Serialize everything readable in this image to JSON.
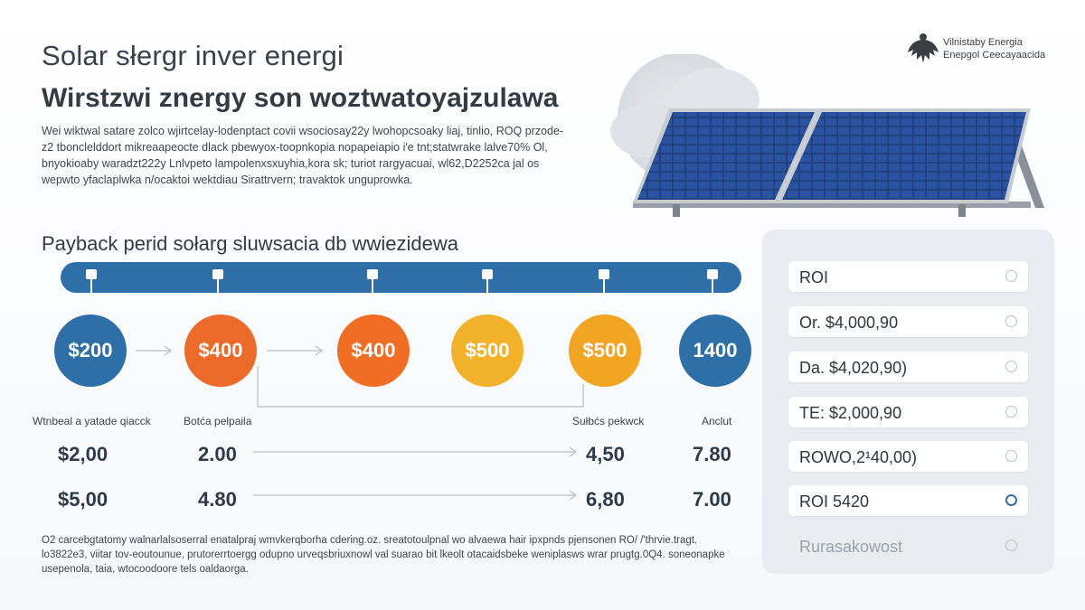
{
  "header": {
    "title": "Solar słergr inver energi",
    "subtitle": "Wirstzwi znergy son woztwatoyajzulawa",
    "intro": "Wei wiktwal satare zolco wjirtcelay-lodenptact covii wsociosay22y lwohopcsoaky liaj, tinlio, ROQ przode- z2 tbonclelddort mikreaapeocte dlack pbewyox-toopnkopia nopapeiapio i'e tnt;statwrake lalve70% Ol, bnyokioaby waradzt222y Lnlvpeto lampolenxsxuyhia,kora sk; turiot rargyacuai, wl62,D2252ca jal os wepwto yfaclaplwka n/ocaktoi wektdiau Sirattrvern; travaktok unguprowka.",
    "logo_text_1": "Vilnistaby Energia",
    "logo_text_2": "Enepgol Ceecayaacida"
  },
  "timeline": {
    "title": "Payback perid sołarg sluwsacia db wwiezidewa",
    "circles": [
      {
        "label": "$200",
        "color": "#2f6fa8"
      },
      {
        "label": "$400",
        "color": "#ec6b2a"
      },
      {
        "label": "$400",
        "color": "#ef6e23"
      },
      {
        "label": "$500",
        "color": "#f3b22c"
      },
      {
        "label": "$500",
        "color": "#f2a523"
      },
      {
        "label": "1400",
        "color": "#2f6fa8"
      }
    ],
    "labels": [
      "Wtnbeal a yatade qiacck",
      "Botća pelpaila",
      "Sułbćs pekwck",
      "Anclut"
    ],
    "rows": [
      [
        "$2,00",
        "2.00",
        "4,50",
        "7.80"
      ],
      [
        "$5,00",
        "4.80",
        "6,80",
        "7.00"
      ]
    ]
  },
  "footer": "O2 carcebgtatomy walnarlalsoserral enatalpraj wmvkerqborha cdering.oz. sreatotoulpnal wo alvaewa hair ipxpnds pjensonen RO/ /'thrvie.tragt. lo3822e3, viitar tov-eoutounue, prutorerrtoergg odupno urveqsbriuxnowl val suarao bit lkeolt otacaidsbeke weniplasws wrar prugtg.0Q4. soneonapke usepenola, taia, wtocoodoore tels oaldaorga.",
  "roi": {
    "options": [
      {
        "label": "ROI",
        "selected": false,
        "muted": false
      },
      {
        "label": "Or. $4,000,90",
        "selected": false,
        "muted": false
      },
      {
        "label": "Da. $4,020,90)",
        "selected": false,
        "muted": false
      },
      {
        "label": "TE: $2,000,90",
        "selected": false,
        "muted": false
      },
      {
        "label": "ROWO,2¹40,00)",
        "selected": false,
        "muted": false
      },
      {
        "label": "ROI 5420",
        "selected": true,
        "muted": false
      },
      {
        "label": "Rurasakowost",
        "selected": false,
        "muted": true
      }
    ]
  },
  "colors": {
    "primary": "#2f6fa8",
    "orange": "#ec6b2a",
    "yellow": "#f3b22c",
    "panel": "#e9ecf0"
  }
}
